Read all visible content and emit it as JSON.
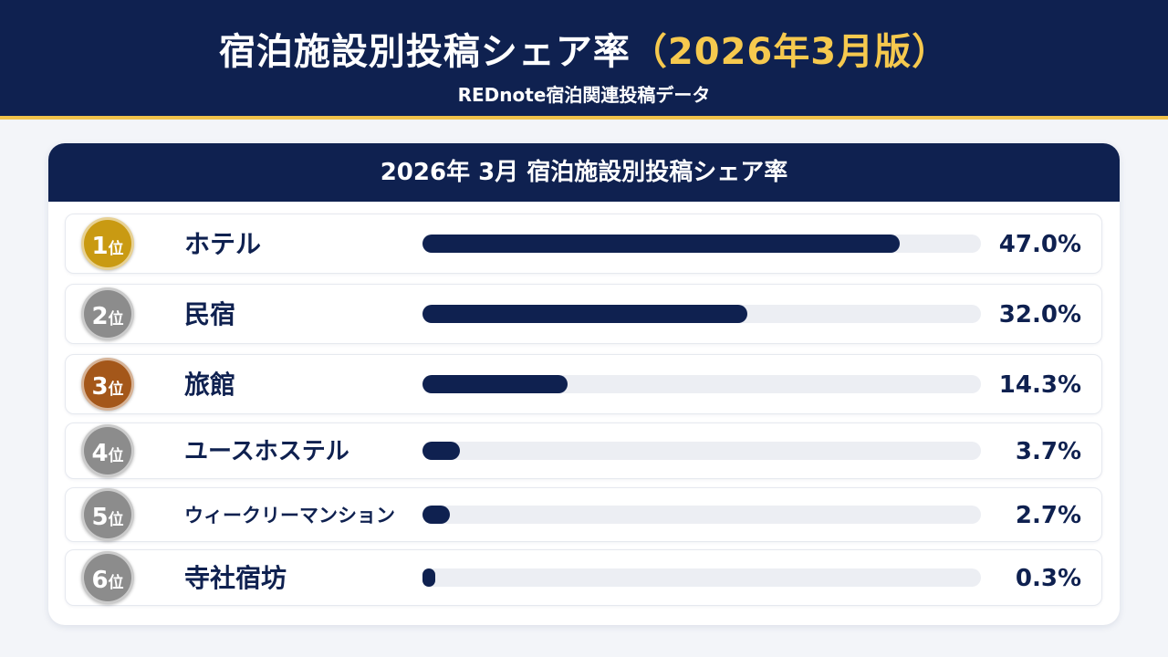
{
  "header": {
    "title_main": "宿泊施設別投稿シェア率",
    "title_accent": "（2026年3月版）",
    "subtitle": "REDnote宿泊関連投稿データ"
  },
  "card": {
    "title": "2026年 3月  宿泊施設別投稿シェア率"
  },
  "colors": {
    "navy": "#0f2150",
    "gold_accent": "#f6c94e",
    "rank_gold": "#c99a12",
    "rank_silver": "#8c8c8c",
    "rank_bronze": "#a4571a",
    "track": "#eceef3"
  },
  "chart_data": {
    "type": "bar",
    "title": "2026年 3月  宿泊施設別投稿シェア率",
    "categories": [
      "ホテル",
      "民宿",
      "旅館",
      "ユースホステル",
      "ウィークリーマンション",
      "寺社宿坊"
    ],
    "values": [
      47.0,
      32.0,
      14.3,
      3.7,
      2.7,
      0.3
    ],
    "value_labels": [
      "47.0%",
      "32.0%",
      "14.3%",
      "3.7%",
      "2.7%",
      "0.3%"
    ],
    "ranks": [
      {
        "num": "1",
        "unit": "位"
      },
      {
        "num": "2",
        "unit": "位"
      },
      {
        "num": "3",
        "unit": "位"
      },
      {
        "num": "4",
        "unit": "位"
      },
      {
        "num": "5",
        "unit": "位"
      },
      {
        "num": "6",
        "unit": "位"
      }
    ],
    "xlim": [
      0,
      55
    ],
    "orientation": "horizontal",
    "grid": false
  }
}
